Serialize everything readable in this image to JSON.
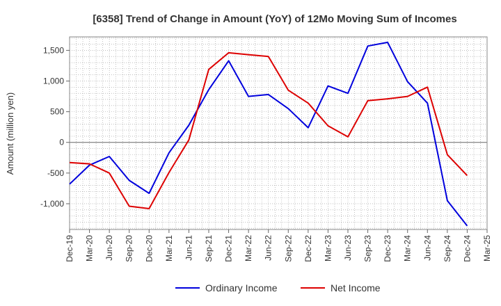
{
  "chart_data": {
    "type": "line",
    "title": "[6358]  Trend of Change in Amount (YoY) of 12Mo Moving Sum of Incomes",
    "ylabel": "Amount (million yen)",
    "xlabel": "",
    "categories": [
      "Dec-19",
      "Mar-20",
      "Jun-20",
      "Sep-20",
      "Dec-20",
      "Mar-21",
      "Jun-21",
      "Sep-21",
      "Dec-21",
      "Mar-22",
      "Jun-22",
      "Sep-22",
      "Dec-22",
      "Mar-23",
      "Jun-23",
      "Sep-23",
      "Dec-23",
      "Mar-24",
      "Jun-24",
      "Sep-24",
      "Dec-24",
      "Mar-25"
    ],
    "yticks": [
      1500,
      1000,
      500,
      0,
      -500,
      -1000
    ],
    "ytick_labels": [
      "1,500",
      "1,000",
      "500",
      "0",
      "-500",
      "-1,000"
    ],
    "ylim": [
      -1420,
      1720
    ],
    "grid": true,
    "legend_position": "bottom",
    "series": [
      {
        "name": "Ordinary Income",
        "color": "#0000dd",
        "values": [
          -680,
          -370,
          -230,
          -620,
          -830,
          -170,
          280,
          860,
          1330,
          750,
          780,
          550,
          240,
          920,
          800,
          1570,
          1630,
          990,
          640,
          -950,
          -1360,
          null
        ]
      },
      {
        "name": "Net Income",
        "color": "#dd0000",
        "values": [
          -330,
          -350,
          -500,
          -1040,
          -1080,
          -490,
          40,
          1190,
          1460,
          1430,
          1400,
          850,
          640,
          270,
          90,
          680,
          710,
          750,
          900,
          -200,
          -540,
          null
        ]
      }
    ]
  }
}
